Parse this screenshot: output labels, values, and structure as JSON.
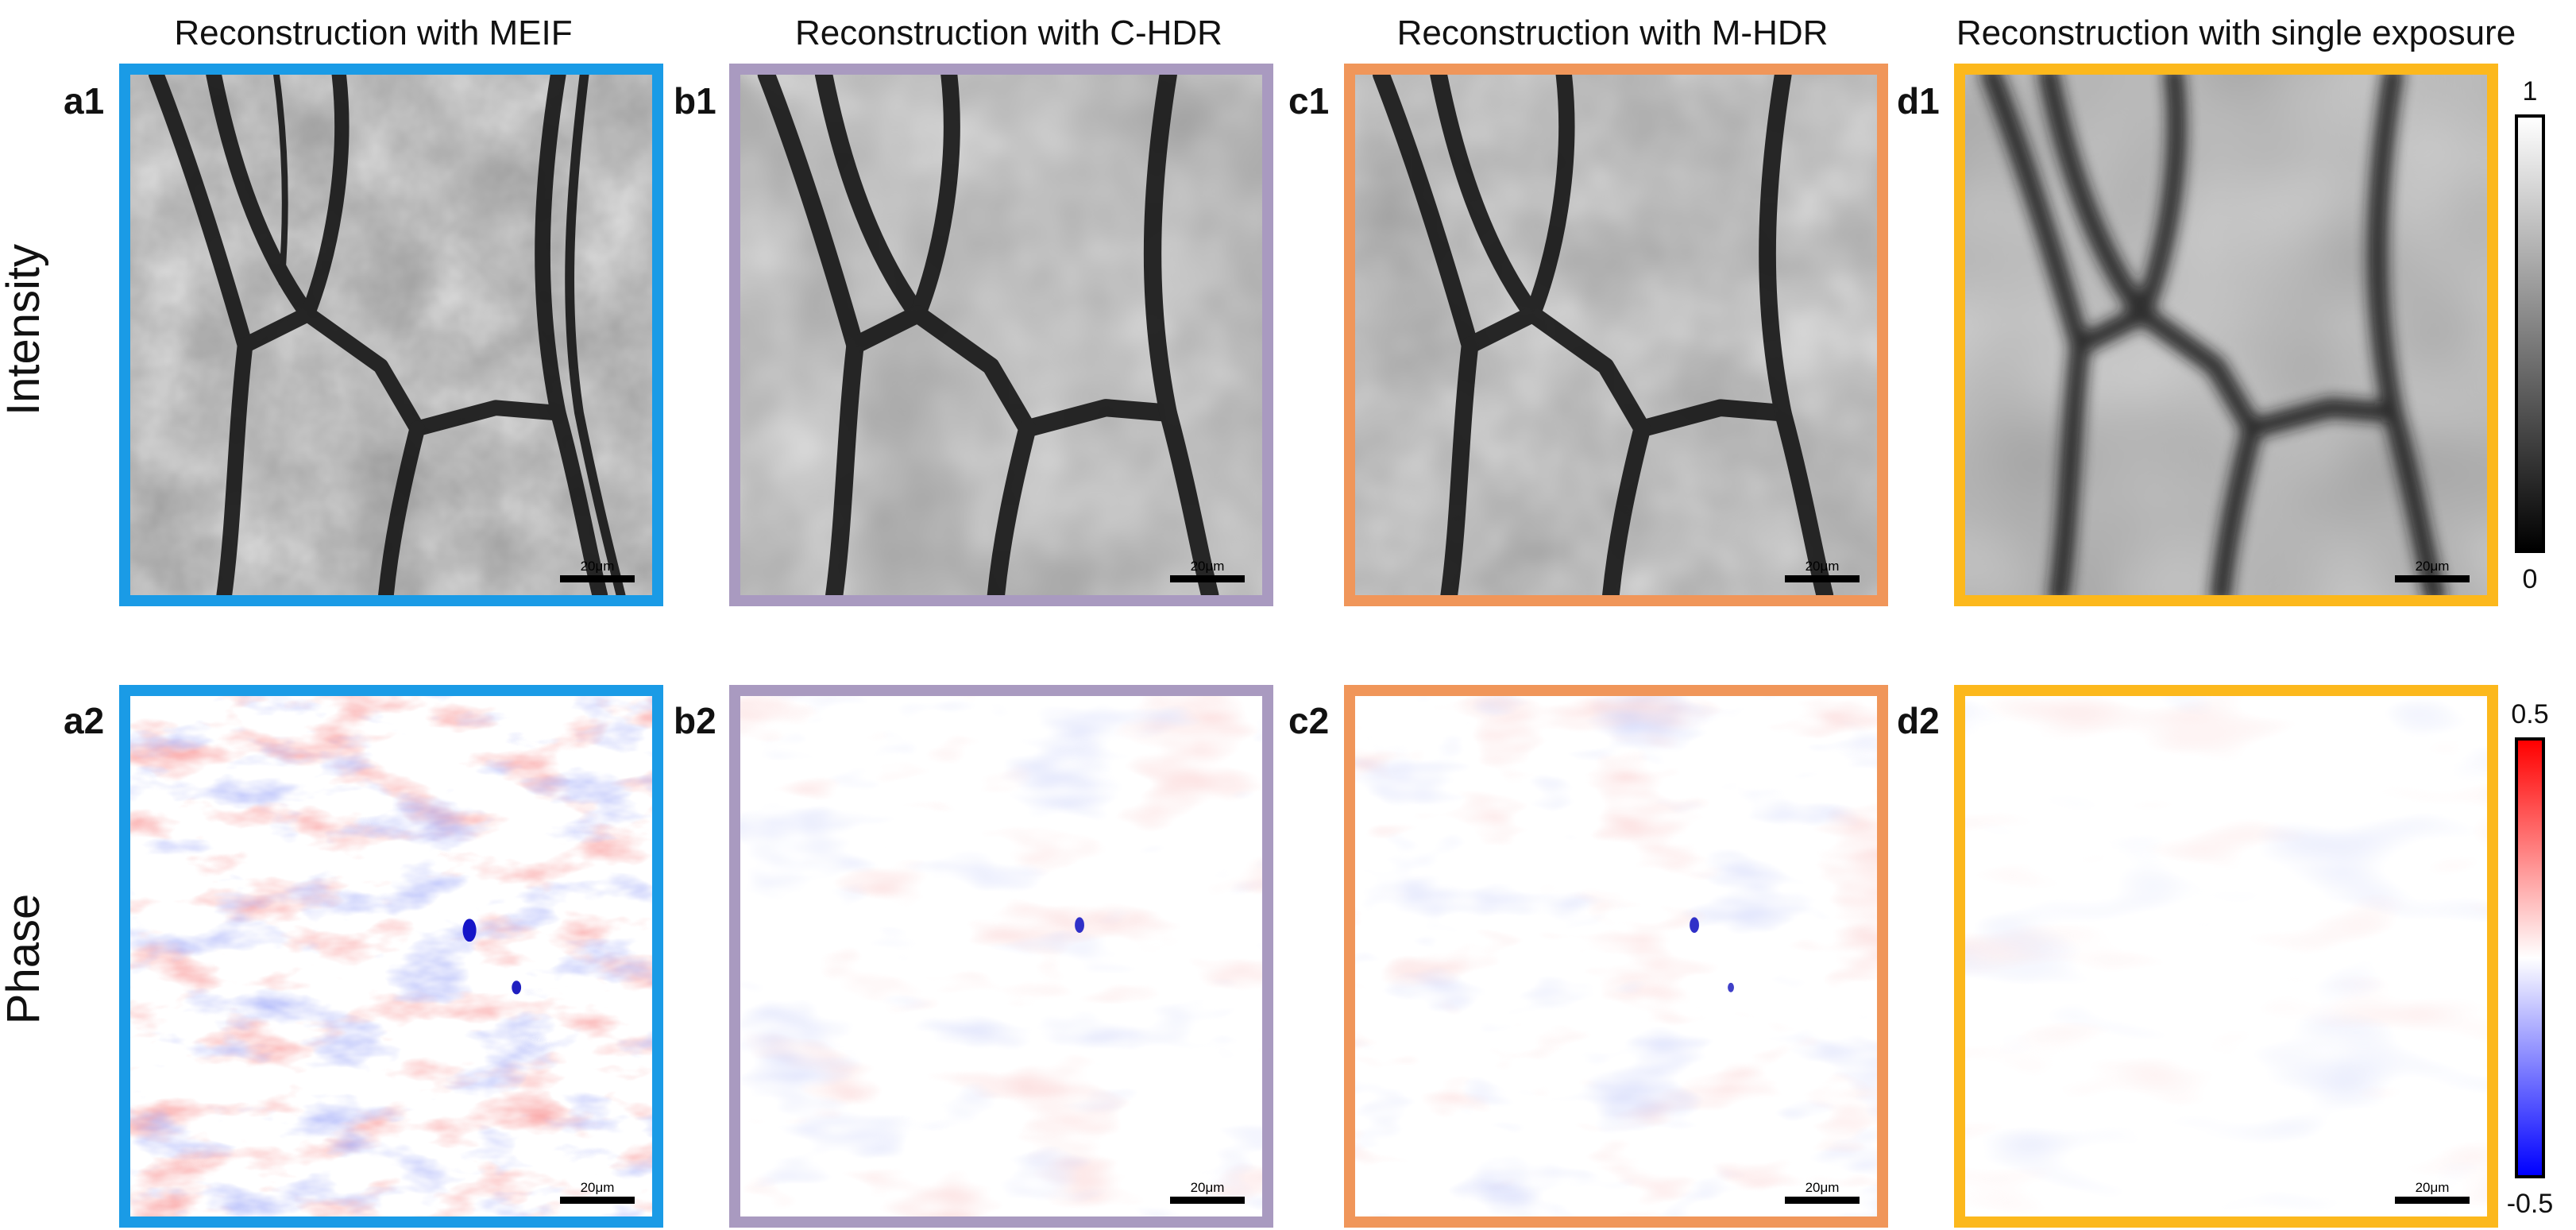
{
  "columns": [
    {
      "title": "Reconstruction with MEIF",
      "color": "#1a9be6"
    },
    {
      "title": "Reconstruction with C-HDR",
      "color": "#a99ac0"
    },
    {
      "title": "Reconstruction with M-HDR",
      "color": "#f0965a"
    },
    {
      "title": "Reconstruction with single exposure",
      "color": "#fcb81c"
    }
  ],
  "rows": [
    {
      "label": "Intensity",
      "panels": [
        "a1",
        "b1",
        "c1",
        "d1"
      ]
    },
    {
      "label": "Phase",
      "panels": [
        "a2",
        "b2",
        "c2",
        "d2"
      ]
    }
  ],
  "scalebar_label": "20μm",
  "colorbars": {
    "intensity": {
      "max": "1",
      "min": "0",
      "gradient": [
        "#000000",
        "#ffffff"
      ]
    },
    "phase": {
      "max": "0.5",
      "min": "-0.5",
      "gradient": [
        "#0000ff",
        "#ffffff",
        "#ff0000"
      ]
    }
  }
}
